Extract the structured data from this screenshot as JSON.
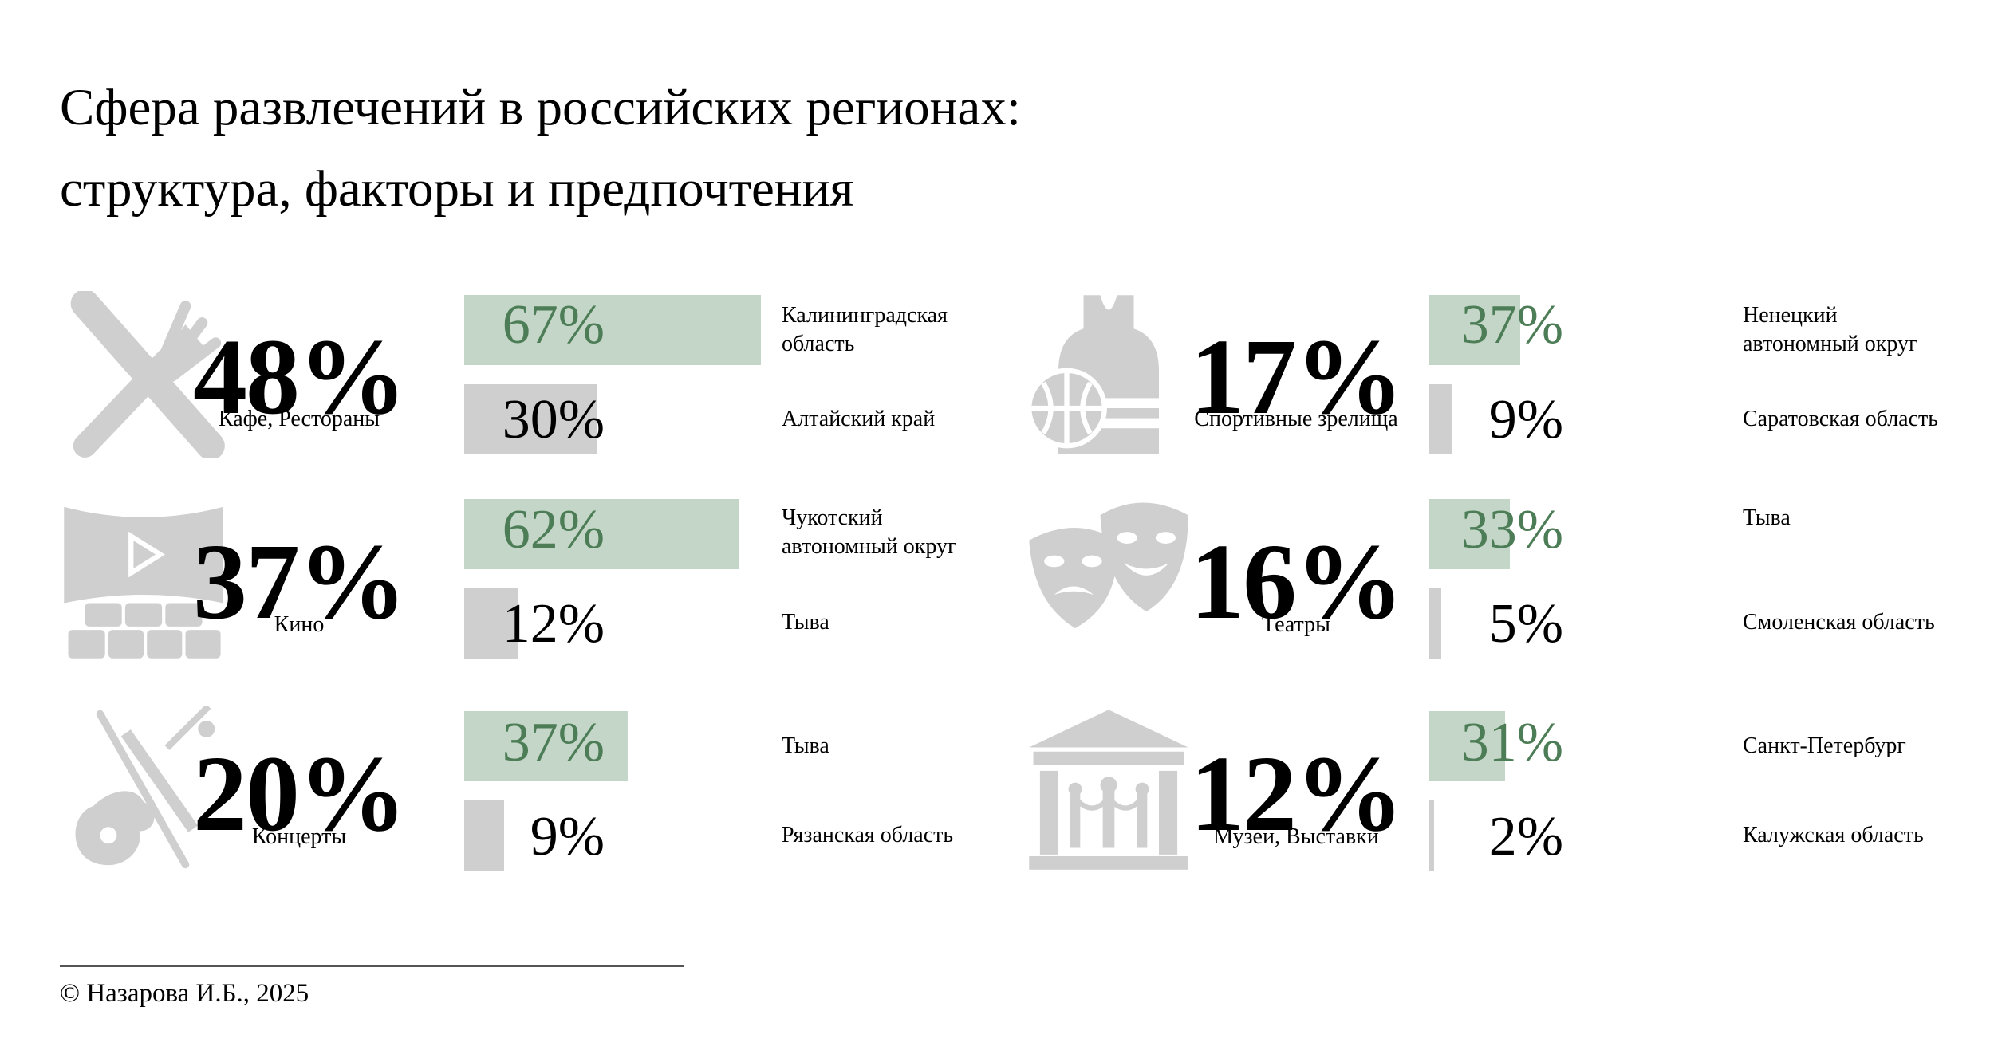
{
  "title": [
    "Сфера развлечений в российских регионах:",
    "структура, факторы и предпочтения"
  ],
  "footer": "© Назарова И.Б., 2025",
  "colors": {
    "max_bar": "#c3d6c7",
    "min_bar": "#cfcfcf",
    "max_text": "#4d7d56",
    "icon": "#cfcfcf"
  },
  "chart_data": {
    "type": "bar",
    "bar_scale_max_percent": 67,
    "categories": [
      {
        "name": "Кафе, Рестораны",
        "icon": "fork-knife-icon",
        "overall": "48%",
        "max": {
          "value": 67,
          "label": "67%",
          "region": "Калининградская область"
        },
        "min": {
          "value": 30,
          "label": "30%",
          "region": "Алтайский край"
        }
      },
      {
        "name": "Кино",
        "icon": "cinema-icon",
        "overall": "37%",
        "max": {
          "value": 62,
          "label": "62%",
          "region": "Чукотский автономный округ"
        },
        "min": {
          "value": 12,
          "label": "12%",
          "region": "Тыва"
        }
      },
      {
        "name": "Концерты",
        "icon": "guitar-icon",
        "overall": "20%",
        "max": {
          "value": 37,
          "label": "37%",
          "region": "Тыва"
        },
        "min": {
          "value": 9,
          "label": "9%",
          "region": "Рязанская область"
        }
      },
      {
        "name": "Спортивные зрелища",
        "icon": "sport-icon",
        "overall": "17%",
        "max": {
          "value": 37,
          "label": "37%",
          "region": "Ненецкий автономный округ"
        },
        "min": {
          "value": 9,
          "label": "9%",
          "region": "Саратовская область"
        }
      },
      {
        "name": "Театры",
        "icon": "theater-masks-icon",
        "overall": "16%",
        "max": {
          "value": 33,
          "label": "33%",
          "region": "Тыва"
        },
        "min": {
          "value": 5,
          "label": "5%",
          "region": "Смоленская область"
        }
      },
      {
        "name": "Музеи, Выставки",
        "icon": "museum-icon",
        "overall": "12%",
        "max": {
          "value": 31,
          "label": "31%",
          "region": "Санкт-Петербург"
        },
        "min": {
          "value": 2,
          "label": "2%",
          "region": "Калужская область"
        }
      }
    ]
  }
}
